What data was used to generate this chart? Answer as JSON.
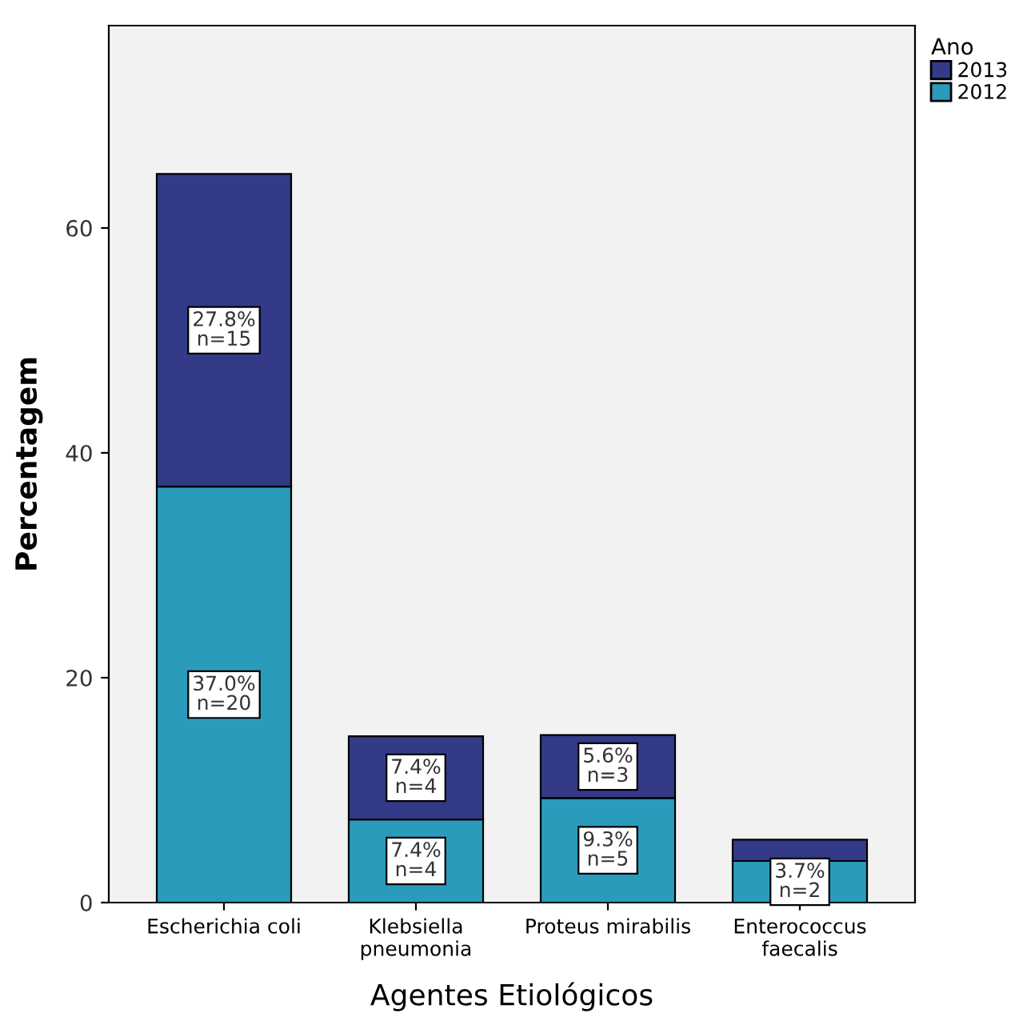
{
  "chart_data": {
    "type": "bar",
    "stacked": true,
    "xlabel": "Agentes Etiológicos",
    "ylabel": "Percentagem",
    "legend_title": "Ano",
    "legend": "right",
    "categories": [
      "Escherichia coli",
      "Klebsiella\npneumonia",
      "Proteus mirabilis",
      "Enterococcus\nfaecalis"
    ],
    "series": [
      {
        "name": "2012",
        "color": "#2a9bbb",
        "values": [
          37.0,
          7.4,
          9.3,
          3.7
        ],
        "value_labels": [
          "37.0%\nn=20",
          "7.4%\nn=4",
          "9.3%\nn=5",
          "3.7%\nn=2"
        ]
      },
      {
        "name": "2013",
        "color": "#333a87",
        "values": [
          27.8,
          7.4,
          5.6,
          1.9
        ],
        "value_labels": [
          "27.8%\nn=15",
          "7.4%\nn=4",
          "5.6%\nn=3",
          null
        ]
      }
    ],
    "ylim": [
      0,
      78
    ],
    "yticks": [
      0,
      20,
      40,
      60
    ]
  }
}
